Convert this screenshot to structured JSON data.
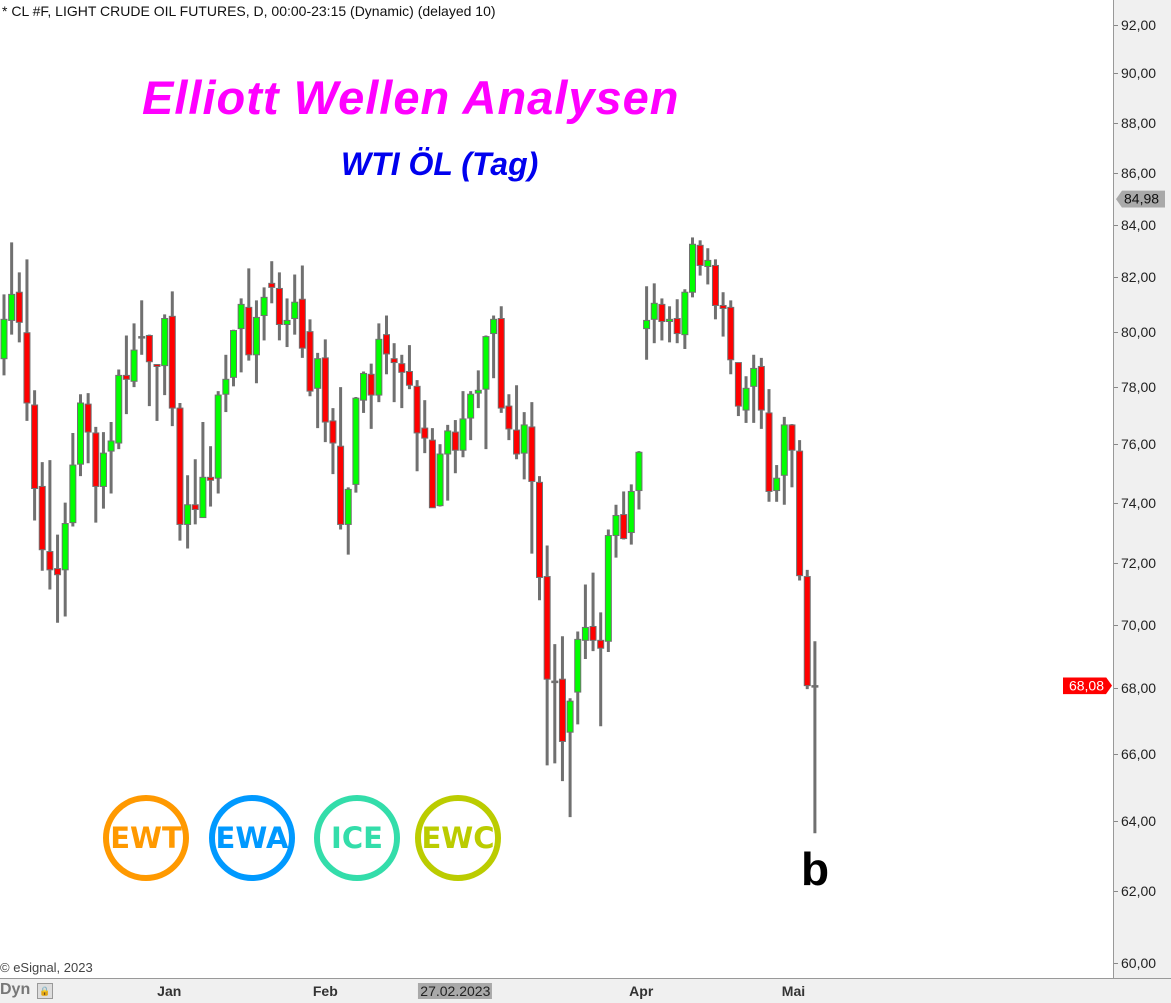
{
  "header": "* CL #F, LIGHT CRUDE OIL FUTURES, D, 00:00-23:15 (Dynamic) (delayed 10)",
  "title": "Elliott Wellen Analysen",
  "subtitle": "WTI ÖL (Tag)",
  "wave_label": "b",
  "copyright": "© eSignal, 2023",
  "dyn_label": "Dyn",
  "logos": [
    {
      "text": "EWT",
      "color": "#ff9900"
    },
    {
      "text": "EWA",
      "color": "#0099ff"
    },
    {
      "text": "ICE",
      "color": "#33ddaa"
    },
    {
      "text": "EWC",
      "color": "#bbcc00"
    }
  ],
  "colors": {
    "up": "#00ff00",
    "down": "#ff0000",
    "wick": "#707070",
    "last_price_bg": "#ff0000",
    "marker_bg": "#a9a9a9"
  },
  "chart_data": {
    "type": "candlestick",
    "yscale": "log",
    "ylim": [
      60,
      92
    ],
    "y_ticks": [
      "92,00",
      "90,00",
      "88,00",
      "86,00",
      "84,00",
      "82,00",
      "80,00",
      "78,00",
      "76,00",
      "74,00",
      "72,00",
      "70,00",
      "68,00",
      "66,00",
      "64,00",
      "62,00",
      "60,00"
    ],
    "x_ticks": [
      "Jan",
      "Feb",
      "27.02.2023",
      "Apr",
      "Mai"
    ],
    "price_labels": [
      {
        "text": "84,98",
        "value": 84.98,
        "kind": "marker"
      },
      {
        "text": "68,08",
        "value": 68.08,
        "kind": "last"
      }
    ],
    "grid": false,
    "ohlc": [
      [
        79.02,
        81.37,
        78.42,
        80.45
      ],
      [
        80.41,
        83.32,
        79.89,
        81.37
      ],
      [
        81.45,
        82.19,
        79.61,
        80.34
      ],
      [
        79.96,
        82.68,
        76.81,
        77.44
      ],
      [
        77.37,
        77.89,
        73.4,
        74.48
      ],
      [
        74.55,
        75.38,
        71.74,
        72.43
      ],
      [
        72.37,
        75.45,
        71.13,
        71.77
      ],
      [
        71.81,
        72.93,
        70.06,
        71.61
      ],
      [
        71.77,
        74.0,
        70.26,
        73.3
      ],
      [
        73.33,
        76.39,
        73.2,
        75.28
      ],
      [
        75.31,
        77.75,
        74.9,
        77.44
      ],
      [
        77.4,
        77.79,
        75.34,
        76.42
      ],
      [
        76.39,
        76.6,
        73.33,
        74.55
      ],
      [
        74.55,
        76.42,
        73.8,
        75.69
      ],
      [
        75.76,
        76.77,
        74.31,
        76.11
      ],
      [
        76.04,
        78.63,
        75.83,
        78.42
      ],
      [
        78.42,
        79.86,
        77.05,
        78.28
      ],
      [
        78.21,
        80.3,
        78.0,
        79.33
      ],
      [
        79.82,
        81.15,
        79.16,
        79.82
      ],
      [
        79.86,
        79.89,
        77.33,
        78.91
      ],
      [
        78.81,
        78.81,
        76.81,
        78.74
      ],
      [
        78.77,
        80.63,
        77.72,
        80.48
      ],
      [
        80.56,
        81.48,
        76.63,
        77.26
      ],
      [
        77.26,
        77.44,
        72.73,
        73.27
      ],
      [
        73.27,
        74.93,
        72.47,
        73.93
      ],
      [
        73.93,
        75.48,
        73.27,
        73.77
      ],
      [
        73.5,
        76.77,
        73.5,
        74.86
      ],
      [
        74.86,
        75.93,
        73.87,
        74.76
      ],
      [
        74.83,
        77.86,
        74.31,
        77.72
      ],
      [
        77.75,
        79.16,
        77.12,
        78.28
      ],
      [
        78.35,
        80.07,
        78.03,
        80.04
      ],
      [
        80.11,
        81.22,
        78.53,
        81.0
      ],
      [
        80.89,
        82.34,
        78.95,
        79.16
      ],
      [
        79.16,
        81.15,
        78.14,
        80.52
      ],
      [
        80.59,
        81.63,
        79.68,
        81.26
      ],
      [
        81.78,
        82.61,
        81.04,
        81.63
      ],
      [
        81.59,
        82.19,
        79.68,
        80.26
      ],
      [
        80.26,
        81.22,
        79.44,
        80.41
      ],
      [
        80.48,
        82.11,
        79.89,
        81.08
      ],
      [
        81.19,
        82.45,
        79.05,
        79.4
      ],
      [
        80.0,
        80.45,
        77.68,
        77.86
      ],
      [
        77.96,
        79.23,
        76.56,
        79.02
      ],
      [
        79.05,
        79.72,
        76.07,
        76.77
      ],
      [
        76.81,
        77.26,
        74.97,
        76.04
      ],
      [
        75.93,
        78.0,
        73.1,
        73.27
      ],
      [
        73.27,
        74.52,
        72.27,
        74.45
      ],
      [
        74.62,
        77.65,
        74.34,
        77.61
      ],
      [
        77.54,
        78.56,
        77.09,
        78.49
      ],
      [
        78.46,
        78.84,
        76.53,
        77.72
      ],
      [
        77.72,
        80.3,
        77.47,
        79.72
      ],
      [
        79.89,
        80.59,
        78.46,
        79.19
      ],
      [
        79.02,
        79.58,
        77.47,
        78.88
      ],
      [
        78.84,
        79.16,
        77.26,
        78.53
      ],
      [
        78.56,
        79.51,
        77.93,
        78.07
      ],
      [
        78.03,
        78.25,
        75.07,
        76.39
      ],
      [
        76.56,
        77.54,
        75.69,
        76.21
      ],
      [
        76.14,
        76.56,
        73.83,
        73.83
      ],
      [
        73.9,
        76.0,
        73.87,
        75.66
      ],
      [
        75.66,
        76.67,
        74.07,
        76.46
      ],
      [
        76.42,
        76.84,
        75.0,
        75.79
      ],
      [
        75.79,
        77.86,
        75.55,
        76.88
      ],
      [
        76.91,
        77.86,
        76.14,
        77.75
      ],
      [
        77.79,
        78.6,
        77.26,
        77.89
      ],
      [
        77.93,
        79.86,
        75.83,
        79.82
      ],
      [
        79.93,
        80.59,
        78.32,
        80.45
      ],
      [
        80.48,
        80.93,
        77.09,
        77.26
      ],
      [
        77.33,
        77.75,
        76.14,
        76.53
      ],
      [
        76.49,
        78.07,
        75.48,
        75.66
      ],
      [
        75.69,
        77.12,
        74.79,
        76.67
      ],
      [
        76.6,
        77.47,
        72.3,
        74.72
      ],
      [
        74.69,
        74.9,
        70.78,
        71.52
      ],
      [
        71.55,
        72.57,
        65.65,
        68.28
      ],
      [
        68.22,
        69.38,
        65.71,
        68.22
      ],
      [
        68.28,
        69.63,
        65.18,
        66.37
      ],
      [
        66.65,
        67.69,
        64.12,
        67.6
      ],
      [
        67.88,
        69.78,
        66.89,
        69.53
      ],
      [
        69.5,
        71.29,
        68.91,
        69.91
      ],
      [
        69.94,
        71.68,
        69.16,
        69.5
      ],
      [
        69.5,
        70.39,
        66.83,
        69.25
      ],
      [
        69.47,
        73.1,
        69.13,
        72.9
      ],
      [
        72.9,
        73.93,
        72.17,
        73.57
      ],
      [
        73.6,
        74.38,
        72.77,
        72.8
      ],
      [
        73.0,
        74.62,
        72.6,
        74.38
      ],
      [
        74.41,
        75.76,
        73.77,
        75.72
      ],
      [
        80.11,
        81.67,
        78.98,
        80.41
      ],
      [
        80.45,
        81.78,
        79.58,
        81.04
      ],
      [
        81.0,
        81.22,
        79.68,
        80.37
      ],
      [
        80.37,
        80.93,
        79.61,
        80.45
      ],
      [
        80.48,
        81.19,
        79.58,
        79.93
      ],
      [
        79.89,
        81.56,
        79.37,
        81.45
      ],
      [
        81.45,
        83.51,
        81.26,
        83.25
      ],
      [
        83.21,
        83.4,
        82.07,
        82.45
      ],
      [
        82.41,
        83.1,
        81.74,
        82.64
      ],
      [
        82.45,
        82.68,
        80.45,
        80.96
      ],
      [
        80.96,
        81.45,
        79.82,
        80.85
      ],
      [
        80.89,
        81.15,
        78.46,
        78.98
      ],
      [
        78.88,
        78.88,
        76.98,
        77.33
      ],
      [
        77.19,
        78.39,
        76.74,
        77.96
      ],
      [
        78.03,
        79.16,
        76.74,
        78.67
      ],
      [
        78.74,
        79.05,
        76.53,
        77.19
      ],
      [
        77.09,
        77.93,
        74.03,
        74.38
      ],
      [
        74.41,
        75.28,
        74.03,
        74.83
      ],
      [
        74.93,
        76.95,
        73.93,
        76.67
      ],
      [
        76.67,
        76.7,
        74.52,
        75.79
      ],
      [
        75.76,
        76.14,
        71.42,
        71.58
      ],
      [
        71.55,
        71.77,
        67.97,
        68.08
      ],
      [
        68.08,
        69.47,
        63.65,
        68.08
      ]
    ]
  }
}
